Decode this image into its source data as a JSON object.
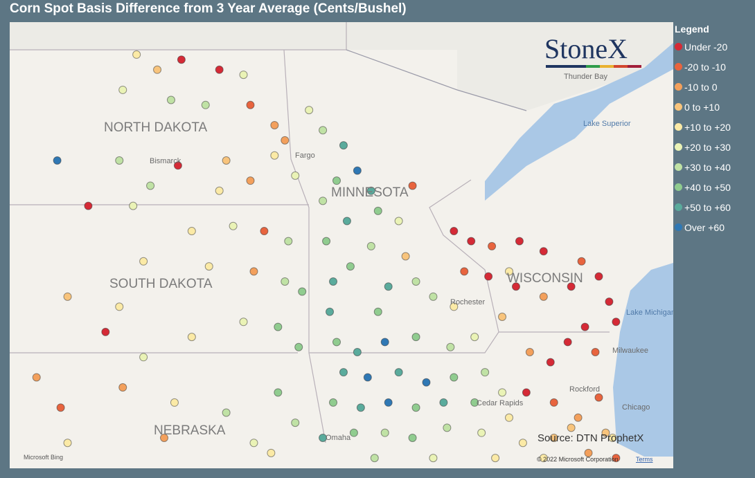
{
  "header": {
    "title": "Corn Spot Basis Difference from 3 Year Average (Cents/Bushel)"
  },
  "legend": {
    "title": "Legend",
    "items": [
      {
        "label": "Under -20",
        "color": "#d52a36"
      },
      {
        "label": "-20 to -10",
        "color": "#e8643e"
      },
      {
        "label": "-10 to 0",
        "color": "#f3a05c"
      },
      {
        "label": "0 to +10",
        "color": "#f8c47c"
      },
      {
        "label": "+10 to +20",
        "color": "#fbeaa6"
      },
      {
        "label": "+20 to +30",
        "color": "#eaf3b6"
      },
      {
        "label": "+30 to +40",
        "color": "#c0e2a5"
      },
      {
        "label": "+40 to +50",
        "color": "#90cc8f"
      },
      {
        "label": "+50 to +60",
        "color": "#5aab9c"
      },
      {
        "label": "Over +60",
        "color": "#2f78b4"
      }
    ]
  },
  "map": {
    "labels": {
      "north_dakota": "NORTH DAKOTA",
      "south_dakota": "SOUTH DAKOTA",
      "minnesota": "MINNESOTA",
      "wisconsin": "WISCONSIN",
      "nebraska": "NEBRASKA",
      "bismarck": "Bismarck",
      "fargo": "Fargo",
      "thunder_bay": "Thunder Bay",
      "lake_superior": "Lake Superior",
      "lake_michigan": "Lake Michigan",
      "milwaukee": "Milwaukee",
      "chicago": "Chicago",
      "rockford": "Rockford",
      "cedar_rapids": "Cedar Rapids",
      "rochester": "Rochester",
      "omaha": "Omaha"
    },
    "logo": "StoneX",
    "source": "Source: DTN ProphetX",
    "bing": "Microsoft Bing",
    "copyright": "© 2022 Microsoft Corporation",
    "terms": "Terms",
    "points": [
      [
        -101.6,
        48.9,
        4
      ],
      [
        -101,
        48.6,
        3
      ],
      [
        -100.3,
        48.8,
        0
      ],
      [
        -99.2,
        48.6,
        0
      ],
      [
        -98.5,
        48.5,
        5
      ],
      [
        -102,
        48.2,
        5
      ],
      [
        -100.6,
        48,
        6
      ],
      [
        -99.6,
        47.9,
        6
      ],
      [
        -98.3,
        47.9,
        1
      ],
      [
        -97.6,
        47.5,
        2
      ],
      [
        -97.3,
        47.2,
        2
      ],
      [
        -103.9,
        46.8,
        9
      ],
      [
        -102.1,
        46.8,
        6
      ],
      [
        -100.4,
        46.7,
        0
      ],
      [
        -99,
        46.8,
        3
      ],
      [
        -98.3,
        46.4,
        2
      ],
      [
        -97.6,
        46.9,
        4
      ],
      [
        -97,
        46.5,
        5
      ],
      [
        -101.2,
        46.3,
        6
      ],
      [
        -101.7,
        45.9,
        5
      ],
      [
        -99.2,
        46.2,
        4
      ],
      [
        -103,
        45.9,
        0
      ],
      [
        -100,
        45.4,
        4
      ],
      [
        -98.8,
        45.5,
        5
      ],
      [
        -97.9,
        45.4,
        1
      ],
      [
        -97.2,
        45.2,
        6
      ],
      [
        -101.4,
        44.8,
        4
      ],
      [
        -99.5,
        44.7,
        4
      ],
      [
        -98.2,
        44.6,
        2
      ],
      [
        -97.3,
        44.4,
        6
      ],
      [
        -96.8,
        44.2,
        7
      ],
      [
        -103.6,
        44.1,
        3
      ],
      [
        -102.5,
        43.4,
        0
      ],
      [
        -100,
        43.3,
        4
      ],
      [
        -98.5,
        43.6,
        5
      ],
      [
        -97.5,
        43.5,
        7
      ],
      [
        -96.9,
        43.1,
        7
      ],
      [
        -101.4,
        42.9,
        5
      ],
      [
        -102.1,
        43.9,
        4
      ],
      [
        -104.5,
        42.5,
        2
      ],
      [
        -103.8,
        41.9,
        1
      ],
      [
        -102,
        42.3,
        2
      ],
      [
        -100.5,
        42,
        4
      ],
      [
        -99,
        41.8,
        6
      ],
      [
        -97.5,
        42.2,
        7
      ],
      [
        -97,
        41.6,
        6
      ],
      [
        -96.2,
        41.3,
        8
      ],
      [
        -98.2,
        41.2,
        5
      ],
      [
        -100.8,
        41.3,
        2
      ],
      [
        -103.6,
        41.2,
        4
      ],
      [
        -97.7,
        41,
        4
      ],
      [
        -96.6,
        47.8,
        5
      ],
      [
        -96.2,
        47.4,
        6
      ],
      [
        -95.6,
        47.1,
        8
      ],
      [
        -95.2,
        46.6,
        9
      ],
      [
        -94.8,
        46.2,
        8
      ],
      [
        -95.8,
        46.4,
        7
      ],
      [
        -96.2,
        46,
        6
      ],
      [
        -94.6,
        45.8,
        7
      ],
      [
        -95.5,
        45.6,
        8
      ],
      [
        -96.1,
        45.2,
        7
      ],
      [
        -94.8,
        45.1,
        6
      ],
      [
        -95.4,
        44.7,
        7
      ],
      [
        -94.3,
        44.3,
        8
      ],
      [
        -95.9,
        44.4,
        8
      ],
      [
        -94.6,
        43.8,
        7
      ],
      [
        -93.5,
        44.4,
        6
      ],
      [
        -93,
        44.1,
        6
      ],
      [
        -92.4,
        43.9,
        4
      ],
      [
        -96,
        43.8,
        8
      ],
      [
        -93.8,
        44.9,
        3
      ],
      [
        -93.6,
        46.3,
        1
      ],
      [
        -94,
        45.6,
        5
      ],
      [
        -95.8,
        43.2,
        7
      ],
      [
        -95.2,
        43,
        8
      ],
      [
        -94.4,
        43.2,
        9
      ],
      [
        -93.5,
        43.3,
        7
      ],
      [
        -92.5,
        43.1,
        6
      ],
      [
        -91.8,
        43.3,
        5
      ],
      [
        -95.6,
        42.6,
        8
      ],
      [
        -94.9,
        42.5,
        9
      ],
      [
        -94,
        42.6,
        8
      ],
      [
        -93.2,
        42.4,
        9
      ],
      [
        -92.4,
        42.5,
        7
      ],
      [
        -91.5,
        42.6,
        6
      ],
      [
        -95.9,
        42,
        7
      ],
      [
        -95.1,
        41.9,
        8
      ],
      [
        -94.3,
        42,
        9
      ],
      [
        -93.5,
        41.9,
        7
      ],
      [
        -92.7,
        42,
        8
      ],
      [
        -91.8,
        42,
        7
      ],
      [
        -91,
        42.2,
        5
      ],
      [
        -95.3,
        41.4,
        7
      ],
      [
        -94.4,
        41.4,
        6
      ],
      [
        -93.6,
        41.3,
        7
      ],
      [
        -92.6,
        41.5,
        6
      ],
      [
        -91.6,
        41.4,
        5
      ],
      [
        -90.8,
        41.7,
        4
      ],
      [
        -93,
        40.9,
        5
      ],
      [
        -94.7,
        40.9,
        6
      ],
      [
        -91.2,
        40.9,
        4
      ],
      [
        -92.4,
        45.4,
        0
      ],
      [
        -91.9,
        45.2,
        0
      ],
      [
        -91.3,
        45.1,
        1
      ],
      [
        -90.5,
        45.2,
        0
      ],
      [
        -89.8,
        45,
        0
      ],
      [
        -88.7,
        44.8,
        1
      ],
      [
        -92.1,
        44.6,
        1
      ],
      [
        -91.4,
        44.5,
        0
      ],
      [
        -90.6,
        44.3,
        0
      ],
      [
        -89.8,
        44.1,
        2
      ],
      [
        -89,
        44.3,
        0
      ],
      [
        -88.2,
        44.5,
        0
      ],
      [
        -87.9,
        44,
        0
      ],
      [
        -88.6,
        43.5,
        0
      ],
      [
        -89.1,
        43.2,
        0
      ],
      [
        -88.3,
        43,
        1
      ],
      [
        -89.6,
        42.8,
        0
      ],
      [
        -90.2,
        43,
        2
      ],
      [
        -91,
        43.7,
        3
      ],
      [
        -90.8,
        44.6,
        4
      ],
      [
        -87.7,
        43.6,
        0
      ],
      [
        -90.3,
        42.2,
        0
      ],
      [
        -89.5,
        42,
        1
      ],
      [
        -88.8,
        41.7,
        2
      ],
      [
        -88,
        41.4,
        3
      ],
      [
        -87.8,
        41.3,
        4
      ],
      [
        -89.5,
        41.3,
        3
      ],
      [
        -90.4,
        41.2,
        4
      ],
      [
        -88.5,
        41,
        2
      ],
      [
        -87.7,
        40.9,
        1
      ],
      [
        -89.8,
        40.9,
        4
      ],
      [
        -89,
        41.5,
        3
      ],
      [
        -88.2,
        42.1,
        1
      ]
    ]
  }
}
